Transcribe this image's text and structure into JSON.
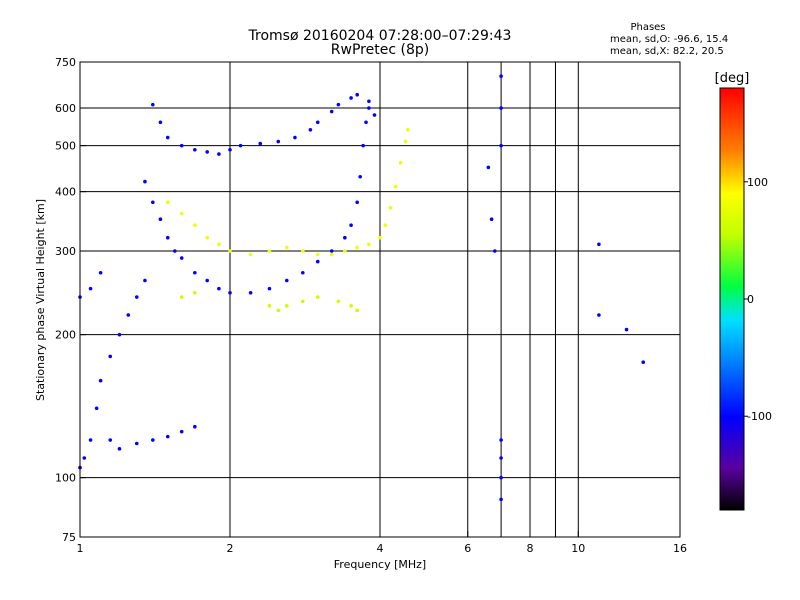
{
  "chart_data": {
    "type": "scatter",
    "title": "Tromsø 20160204 07:28:00–07:29:43",
    "subtitle": "RwPretec (8p)",
    "xlabel": "Frequency [MHz]",
    "ylabel": "Stationary phase Virtual Height [km]",
    "x_scale": "log",
    "y_scale": "log",
    "xlim": [
      1,
      16
    ],
    "ylim": [
      75,
      750
    ],
    "x_ticks": [
      1,
      2,
      4,
      6,
      8,
      10,
      16
    ],
    "x_tick_labels": [
      "1",
      "2",
      "4",
      "6",
      "8",
      "10",
      "16"
    ],
    "y_ticks": [
      75,
      100,
      200,
      300,
      400,
      500,
      600,
      750
    ],
    "y_tick_labels": [
      "75",
      "100",
      "200",
      "300",
      "400",
      "500",
      "600",
      "750"
    ],
    "grid": true,
    "stats": {
      "heading": "Phases",
      "line_o": "mean, sd,O: -96.6, 15.4",
      "line_x": "mean, sd,X:  82.2, 20.5"
    },
    "colorbar": {
      "label": "[deg]",
      "range": [
        -180,
        180
      ],
      "ticks": [
        100,
        0,
        -100
      ],
      "tick_labels": [
        "100",
        "0",
        "-100"
      ]
    },
    "series": [
      {
        "name": "",
        "trace_type": "O-mode F trace (upper)",
        "phase_deg": -100,
        "points": [
          [
            1.4,
            610
          ],
          [
            1.45,
            560
          ],
          [
            1.5,
            520
          ],
          [
            1.6,
            500
          ],
          [
            1.7,
            490
          ],
          [
            1.8,
            485
          ],
          [
            1.9,
            480
          ],
          [
            2.0,
            490
          ],
          [
            2.1,
            500
          ],
          [
            2.3,
            505
          ],
          [
            2.5,
            510
          ],
          [
            2.7,
            520
          ],
          [
            2.9,
            540
          ],
          [
            3.0,
            560
          ],
          [
            3.2,
            590
          ],
          [
            3.3,
            610
          ],
          [
            3.5,
            630
          ],
          [
            3.6,
            640
          ],
          [
            3.8,
            620
          ],
          [
            3.9,
            580
          ]
        ]
      },
      {
        "name": "",
        "trace_type": "O-mode F trace (lower)",
        "phase_deg": -100,
        "points": [
          [
            1.35,
            420
          ],
          [
            1.4,
            380
          ],
          [
            1.45,
            350
          ],
          [
            1.5,
            320
          ],
          [
            1.55,
            300
          ],
          [
            1.6,
            290
          ],
          [
            1.7,
            270
          ],
          [
            1.8,
            260
          ],
          [
            1.9,
            250
          ],
          [
            2.0,
            245
          ],
          [
            2.2,
            245
          ],
          [
            2.4,
            250
          ],
          [
            2.6,
            260
          ],
          [
            2.8,
            270
          ],
          [
            3.0,
            285
          ],
          [
            3.2,
            300
          ],
          [
            3.4,
            320
          ],
          [
            3.5,
            340
          ],
          [
            3.6,
            380
          ],
          [
            3.65,
            430
          ],
          [
            3.7,
            500
          ],
          [
            3.75,
            560
          ],
          [
            3.8,
            600
          ]
        ]
      },
      {
        "name": "",
        "trace_type": "low-height spread echoes",
        "phase_deg": -100,
        "points": [
          [
            1.0,
            105
          ],
          [
            1.02,
            110
          ],
          [
            1.05,
            120
          ],
          [
            1.08,
            140
          ],
          [
            1.1,
            160
          ],
          [
            1.15,
            180
          ],
          [
            1.2,
            200
          ],
          [
            1.25,
            220
          ],
          [
            1.3,
            240
          ],
          [
            1.35,
            260
          ],
          [
            1.0,
            240
          ],
          [
            1.05,
            250
          ],
          [
            1.1,
            270
          ],
          [
            1.15,
            120
          ],
          [
            1.2,
            115
          ],
          [
            1.3,
            118
          ],
          [
            1.4,
            120
          ],
          [
            1.5,
            122
          ],
          [
            1.6,
            125
          ],
          [
            1.7,
            128
          ]
        ]
      },
      {
        "name": "",
        "trace_type": "X-mode trace",
        "phase_deg": 80,
        "points": [
          [
            1.5,
            380
          ],
          [
            1.6,
            360
          ],
          [
            1.7,
            340
          ],
          [
            1.8,
            320
          ],
          [
            1.9,
            310
          ],
          [
            2.0,
            300
          ],
          [
            2.2,
            295
          ],
          [
            2.4,
            300
          ],
          [
            2.6,
            305
          ],
          [
            2.8,
            300
          ],
          [
            3.0,
            295
          ],
          [
            3.2,
            295
          ],
          [
            3.4,
            300
          ],
          [
            3.6,
            305
          ],
          [
            3.8,
            310
          ],
          [
            4.0,
            320
          ],
          [
            4.1,
            340
          ],
          [
            4.2,
            370
          ],
          [
            4.3,
            410
          ],
          [
            4.4,
            460
          ],
          [
            4.5,
            510
          ],
          [
            4.55,
            540
          ]
        ]
      },
      {
        "name": "",
        "trace_type": "X-mode secondary echoes",
        "phase_deg": 60,
        "points": [
          [
            1.6,
            240
          ],
          [
            1.7,
            245
          ],
          [
            2.4,
            230
          ],
          [
            2.5,
            225
          ],
          [
            2.6,
            230
          ],
          [
            2.8,
            235
          ],
          [
            3.0,
            240
          ],
          [
            3.3,
            235
          ],
          [
            3.5,
            230
          ],
          [
            3.6,
            225
          ]
        ]
      },
      {
        "name": "",
        "trace_type": "high-frequency sparse echoes",
        "phase_deg": -100,
        "points": [
          [
            6.6,
            450
          ],
          [
            6.7,
            350
          ],
          [
            6.8,
            300
          ],
          [
            7.0,
            700
          ],
          [
            7.0,
            600
          ],
          [
            7.0,
            500
          ],
          [
            7.0,
            120
          ],
          [
            7.0,
            110
          ],
          [
            7.0,
            100
          ],
          [
            7.0,
            90
          ],
          [
            11.0,
            310
          ],
          [
            11.0,
            220
          ],
          [
            12.5,
            205
          ],
          [
            13.5,
            175
          ]
        ]
      }
    ]
  }
}
